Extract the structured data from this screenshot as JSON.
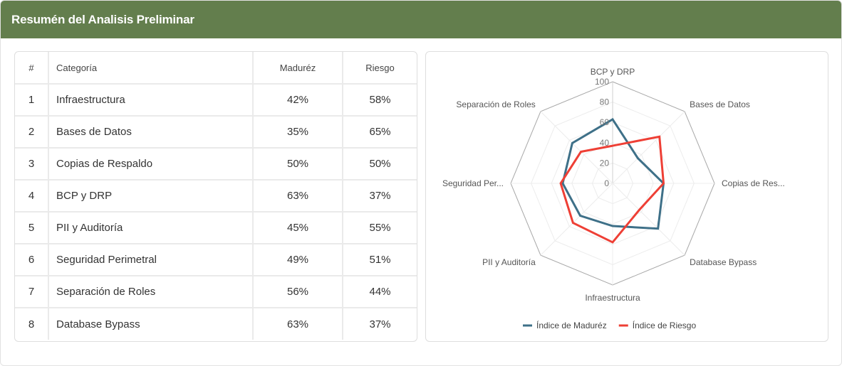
{
  "header": {
    "title": "Resumén del Analisis Preliminar"
  },
  "table": {
    "headers": {
      "num": "#",
      "category": "Categoría",
      "madurez": "Maduréz",
      "riesgo": "Riesgo"
    },
    "rows": [
      {
        "num": "1",
        "category": "Infraestructura",
        "madurez": "42%",
        "riesgo": "58%"
      },
      {
        "num": "2",
        "category": "Bases de Datos",
        "madurez": "35%",
        "riesgo": "65%"
      },
      {
        "num": "3",
        "category": "Copias de Respaldo",
        "madurez": "50%",
        "riesgo": "50%"
      },
      {
        "num": "4",
        "category": "BCP y DRP",
        "madurez": "63%",
        "riesgo": "37%"
      },
      {
        "num": "5",
        "category": "PII y Auditoría",
        "madurez": "45%",
        "riesgo": "55%"
      },
      {
        "num": "6",
        "category": "Seguridad Perimetral",
        "madurez": "49%",
        "riesgo": "51%"
      },
      {
        "num": "7",
        "category": "Separación de Roles",
        "madurez": "56%",
        "riesgo": "44%"
      },
      {
        "num": "8",
        "category": "Database Bypass",
        "madurez": "63%",
        "riesgo": "37%"
      }
    ]
  },
  "chart_data": {
    "type": "radar",
    "axes": [
      "BCP y DRP",
      "Bases de Datos",
      "Copias de Res...",
      "Database Bypass",
      "Infraestructura",
      "PII y Auditoría",
      "Seguridad Per...",
      "Separación de Roles"
    ],
    "ticks": [
      "0",
      "20",
      "40",
      "60",
      "80",
      "100"
    ],
    "range": [
      0,
      100
    ],
    "series": [
      {
        "name": "Índice de Maduréz",
        "color": "#3e7088",
        "values": [
          63,
          35,
          50,
          63,
          42,
          45,
          49,
          56
        ]
      },
      {
        "name": "Índice de Riesgo",
        "color": "#ee3f35",
        "values": [
          37,
          65,
          50,
          37,
          58,
          55,
          51,
          44
        ]
      }
    ],
    "legend_position": "bottom",
    "grid": true
  }
}
